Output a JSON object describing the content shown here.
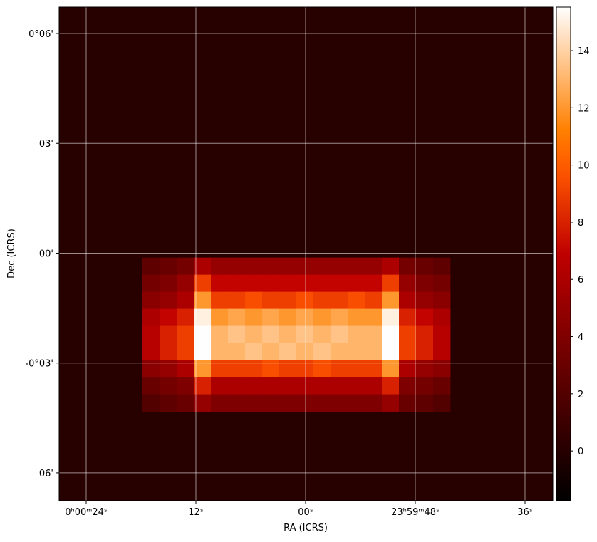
{
  "chart_data": {
    "type": "image",
    "xlabel": "RA (ICRS)",
    "ylabel": "Dec (ICRS)",
    "xlim": [
      26.96,
      -27.04
    ],
    "ylim": [
      -6.76,
      6.72
    ],
    "xticks": [
      {
        "value": 24,
        "label": "0ʰ00ᵐ24ˢ"
      },
      {
        "value": 12,
        "label": "12ˢ"
      },
      {
        "value": 0,
        "label": "00ˢ"
      },
      {
        "value": -12,
        "label": "23ʰ59ᵐ48ˢ"
      },
      {
        "value": -24,
        "label": "36ˢ"
      }
    ],
    "yticks": [
      {
        "value": 6,
        "label": "0°06'"
      },
      {
        "value": 3,
        "label": "03'"
      },
      {
        "value": 0,
        "label": "00'"
      },
      {
        "value": -3,
        "label": "-0°03'"
      },
      {
        "value": -6,
        "label": "06'"
      }
    ],
    "grid": true,
    "colormap": "gist_heat",
    "clim": [
      -1.74,
      15.52
    ],
    "cticks": [
      0,
      2,
      4,
      6,
      8,
      10,
      12,
      14
    ],
    "background_value": 0,
    "extent": [
      17.84,
      -15.82,
      -0.12,
      -4.32
    ],
    "z": [
      [
        2.5,
        3,
        3.5,
        6,
        5,
        5,
        5,
        5,
        5,
        5,
        5,
        5,
        5,
        5,
        6,
        3.5,
        3,
        2.5
      ],
      [
        3.5,
        4,
        5,
        9,
        7,
        7,
        7,
        7,
        7,
        7,
        7,
        7,
        7,
        7,
        9,
        5,
        4,
        3.5
      ],
      [
        4.5,
        5,
        6,
        12,
        9,
        9,
        9.5,
        9,
        9,
        9.5,
        9,
        9,
        9.5,
        9,
        12,
        6,
        5,
        4.5
      ],
      [
        6,
        7,
        8,
        15,
        12,
        12.5,
        12,
        12.5,
        12,
        12.5,
        12,
        12.5,
        12,
        12,
        15,
        8,
        7,
        6
      ],
      [
        6.5,
        8,
        9,
        15.5,
        13,
        13.5,
        13,
        13.5,
        13,
        13.5,
        13,
        13.5,
        13,
        13,
        15.5,
        9,
        8,
        6.5
      ],
      [
        6.5,
        8,
        9,
        15.5,
        13,
        13,
        13.5,
        13,
        13.5,
        13,
        13.5,
        13,
        13,
        13,
        15.5,
        9,
        8,
        6.5
      ],
      [
        4.5,
        5,
        6,
        12,
        9,
        9,
        9,
        9.5,
        9,
        9,
        9.5,
        9,
        9,
        9,
        12,
        6,
        5,
        4.5
      ],
      [
        3,
        3.5,
        4,
        8,
        6,
        6,
        6,
        6,
        6,
        6,
        6,
        6,
        6,
        6,
        8,
        4,
        3.5,
        3
      ],
      [
        2,
        2.5,
        3,
        5,
        4,
        4,
        4,
        4,
        4,
        4,
        4,
        4,
        4,
        4,
        5,
        3,
        2.5,
        2
      ]
    ]
  }
}
